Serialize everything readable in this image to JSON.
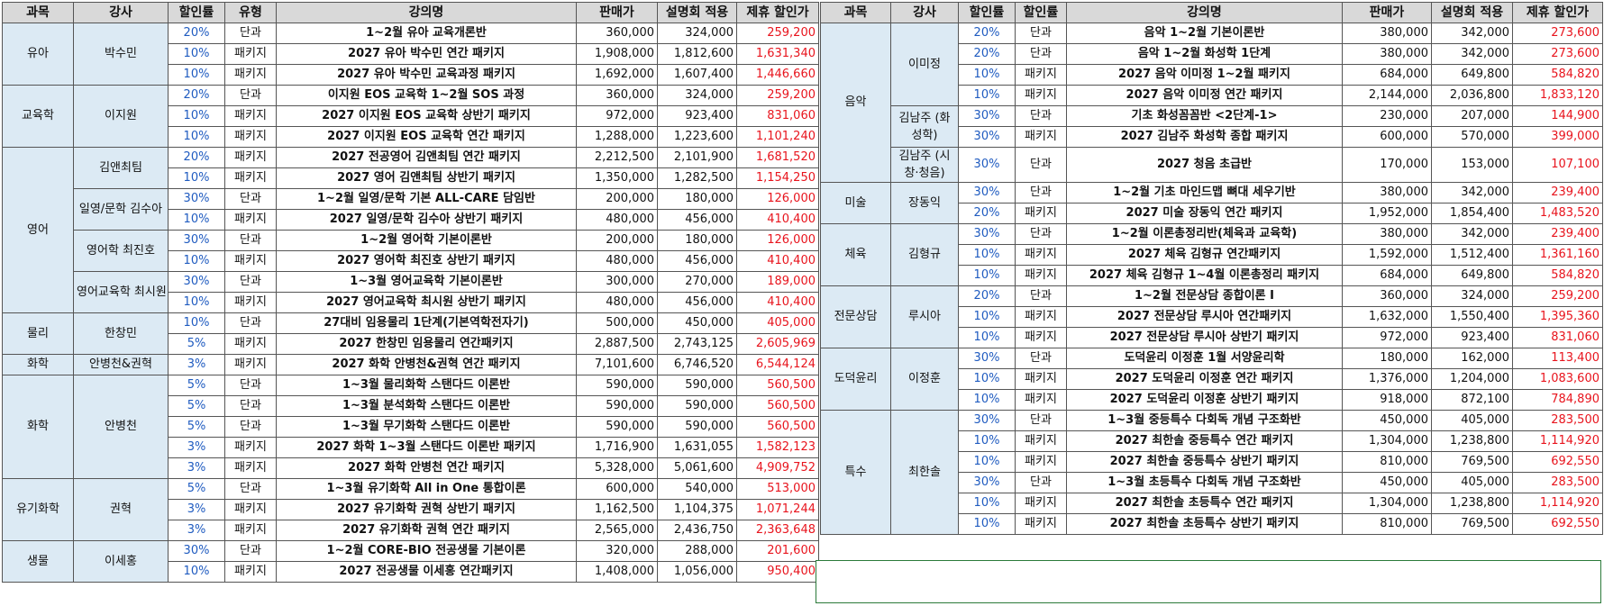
{
  "headers": {
    "subject": "과목",
    "teacher": "강사",
    "discount_left": "할인률",
    "type": "유형",
    "course": "강의명",
    "price": "판매가",
    "session_price": "설명회 적용",
    "partner_price": "제휴 할인가",
    "discount_right": "할인률"
  },
  "left": {
    "subjects": [
      "유아",
      "교육학",
      "영어",
      "물리",
      "화학",
      "화학",
      "유기화학",
      "생물"
    ],
    "teachers": [
      "박수민",
      "이지원",
      "김앤최팀",
      "일영/문학 김수아",
      "영어학 최진호",
      "영어교육학 최시원",
      "한창민",
      "안병천&권혁",
      "안병천",
      "권혁",
      "이세홍"
    ],
    "rows": [
      {
        "disc": "20%",
        "type": "단과",
        "name": "1~2월 유아 교육개론반",
        "price": "360,000",
        "session": "324,000",
        "partner": "259,200"
      },
      {
        "disc": "10%",
        "type": "패키지",
        "name": "2027 유아 박수민 연간 패키지",
        "price": "1,908,000",
        "session": "1,812,600",
        "partner": "1,631,340"
      },
      {
        "disc": "10%",
        "type": "패키지",
        "name": "2027 유아 박수민 교육과정 패키지",
        "price": "1,692,000",
        "session": "1,607,400",
        "partner": "1,446,660"
      },
      {
        "disc": "20%",
        "type": "단과",
        "name": "이지원 EOS 교육학 1~2월 SOS 과정",
        "price": "360,000",
        "session": "324,000",
        "partner": "259,200"
      },
      {
        "disc": "10%",
        "type": "패키지",
        "name": "2027 이지원 EOS 교육학 상반기 패키지",
        "price": "972,000",
        "session": "923,400",
        "partner": "831,060"
      },
      {
        "disc": "10%",
        "type": "패키지",
        "name": "2027 이지원 EOS 교육학 연간 패키지",
        "price": "1,288,000",
        "session": "1,223,600",
        "partner": "1,101,240"
      },
      {
        "disc": "20%",
        "type": "패키지",
        "name": "2027 전공영어 김앤최팀 연간 패키지",
        "price": "2,212,500",
        "session": "2,101,900",
        "partner": "1,681,520"
      },
      {
        "disc": "10%",
        "type": "패키지",
        "name": "2027 영어 김앤최팀 상반기 패키지",
        "price": "1,350,000",
        "session": "1,282,500",
        "partner": "1,154,250"
      },
      {
        "disc": "30%",
        "type": "단과",
        "name": "1~2월 일영/문학 기본 ALL-CARE 담임반",
        "price": "200,000",
        "session": "180,000",
        "partner": "126,000"
      },
      {
        "disc": "10%",
        "type": "패키지",
        "name": "2027 일영/문학 김수아 상반기 패키지",
        "price": "480,000",
        "session": "456,000",
        "partner": "410,400"
      },
      {
        "disc": "30%",
        "type": "단과",
        "name": "1~2월 영어학 기본이론반",
        "price": "200,000",
        "session": "180,000",
        "partner": "126,000"
      },
      {
        "disc": "10%",
        "type": "패키지",
        "name": "2027 영어학 최진호 상반기 패키지",
        "price": "480,000",
        "session": "456,000",
        "partner": "410,400"
      },
      {
        "disc": "30%",
        "type": "단과",
        "name": "1~3월 영어교육학 기본이론반",
        "price": "300,000",
        "session": "270,000",
        "partner": "189,000"
      },
      {
        "disc": "10%",
        "type": "패키지",
        "name": "2027 영어교육학 최시원 상반기 패키지",
        "price": "480,000",
        "session": "456,000",
        "partner": "410,400"
      },
      {
        "disc": "10%",
        "type": "단과",
        "name": "27대비 임용물리 1단계(기본역학전자기)",
        "price": "500,000",
        "session": "450,000",
        "partner": "405,000"
      },
      {
        "disc": "5%",
        "type": "패키지",
        "name": "2027 한창민 임용물리 연간패키지",
        "price": "2,887,500",
        "session": "2,743,125",
        "partner": "2,605,969"
      },
      {
        "disc": "3%",
        "type": "패키지",
        "name": "2027 화학 안병천&권혁 연간 패키지",
        "price": "7,101,600",
        "session": "6,746,520",
        "partner": "6,544,124"
      },
      {
        "disc": "5%",
        "type": "단과",
        "name": "1~3월 물리화학 스탠다드 이론반",
        "price": "590,000",
        "session": "590,000",
        "partner": "560,500"
      },
      {
        "disc": "5%",
        "type": "단과",
        "name": "1~3월 분석화학 스탠다드 이론반",
        "price": "590,000",
        "session": "590,000",
        "partner": "560,500"
      },
      {
        "disc": "5%",
        "type": "단과",
        "name": "1~3월 무기화학 스탠다드 이론반",
        "price": "590,000",
        "session": "590,000",
        "partner": "560,500"
      },
      {
        "disc": "3%",
        "type": "패키지",
        "name": "2027 화학 1~3월 스탠다드 이론반 패키지",
        "price": "1,716,900",
        "session": "1,631,055",
        "partner": "1,582,123"
      },
      {
        "disc": "3%",
        "type": "패키지",
        "name": "2027 화학 안병천 연간 패키지",
        "price": "5,328,000",
        "session": "5,061,600",
        "partner": "4,909,752"
      },
      {
        "disc": "5%",
        "type": "단과",
        "name": "1~3월 유기화학 All in One 통합이론",
        "price": "600,000",
        "session": "540,000",
        "partner": "513,000"
      },
      {
        "disc": "3%",
        "type": "패키지",
        "name": "2027 유기화학 권혁 상반기 패키지",
        "price": "1,162,500",
        "session": "1,104,375",
        "partner": "1,071,244"
      },
      {
        "disc": "3%",
        "type": "패키지",
        "name": "2027 유기화학 권혁 연간 패키지",
        "price": "2,565,000",
        "session": "2,436,750",
        "partner": "2,363,648"
      },
      {
        "disc": "30%",
        "type": "단과",
        "name": "1~2월 CORE-BIO 전공생물 기본이론",
        "price": "320,000",
        "session": "288,000",
        "partner": "201,600"
      },
      {
        "disc": "10%",
        "type": "패키지",
        "name": "2027 전공생물 이세홍 연간패키지",
        "price": "1,408,000",
        "session": "1,056,000",
        "partner": "950,400"
      }
    ]
  },
  "right": {
    "subjects": [
      "음악",
      "미술",
      "체육",
      "전문상담",
      "도덕윤리",
      "특수"
    ],
    "teachers": [
      "이미정",
      "김남주\n(화성학)",
      "김남주\n(시창·청음)",
      "장동익",
      "김형규",
      "루시아",
      "이정훈",
      "최한솔"
    ],
    "rows": [
      {
        "disc": "20%",
        "type": "단과",
        "name": "음악 1~2월 기본이론반",
        "price": "380,000",
        "session": "342,000",
        "partner": "273,600"
      },
      {
        "disc": "20%",
        "type": "단과",
        "name": "음악 1~2월 화성학 1단계",
        "price": "380,000",
        "session": "342,000",
        "partner": "273,600"
      },
      {
        "disc": "10%",
        "type": "패키지",
        "name": "2027 음악 이미정 1~2월 패키지",
        "price": "684,000",
        "session": "649,800",
        "partner": "584,820"
      },
      {
        "disc": "10%",
        "type": "패키지",
        "name": "2027 음악 이미정 연간 패키지",
        "price": "2,144,000",
        "session": "2,036,800",
        "partner": "1,833,120"
      },
      {
        "disc": "30%",
        "type": "단과",
        "name": "기초 화성꼼꼼반 <2단계-1>",
        "price": "230,000",
        "session": "207,000",
        "partner": "144,900"
      },
      {
        "disc": "30%",
        "type": "패키지",
        "name": "2027 김남주 화성학 종합 패키지",
        "price": "600,000",
        "session": "570,000",
        "partner": "399,000"
      },
      {
        "disc": "30%",
        "type": "단과",
        "name": "2027 청음 초급반",
        "price": "170,000",
        "session": "153,000",
        "partner": "107,100"
      },
      {
        "disc": "30%",
        "type": "단과",
        "name": "1~2월 기초 마인드맵 뼈대 세우기반",
        "price": "380,000",
        "session": "342,000",
        "partner": "239,400"
      },
      {
        "disc": "20%",
        "type": "패키지",
        "name": "2027 미술 장동익 연간 패키지",
        "price": "1,952,000",
        "session": "1,854,400",
        "partner": "1,483,520"
      },
      {
        "disc": "30%",
        "type": "단과",
        "name": "1~2월 이론총정리반(체육과 교육학)",
        "price": "380,000",
        "session": "342,000",
        "partner": "239,400"
      },
      {
        "disc": "10%",
        "type": "패키지",
        "name": "2027 체육 김형규 연간패키지",
        "price": "1,592,000",
        "session": "1,512,400",
        "partner": "1,361,160"
      },
      {
        "disc": "10%",
        "type": "패키지",
        "name": "2027 체육 김형규 1~4월 이론총정리 패키지",
        "price": "684,000",
        "session": "649,800",
        "partner": "584,820"
      },
      {
        "disc": "20%",
        "type": "단과",
        "name": "1~2월 전문상담 종합이론 I",
        "price": "360,000",
        "session": "324,000",
        "partner": "259,200"
      },
      {
        "disc": "10%",
        "type": "패키지",
        "name": "2027 전문상담 루시아 연간패키지",
        "price": "1,632,000",
        "session": "1,550,400",
        "partner": "1,395,360"
      },
      {
        "disc": "10%",
        "type": "패키지",
        "name": "2027 전문상담 루시아 상반기 패키지",
        "price": "972,000",
        "session": "923,400",
        "partner": "831,060"
      },
      {
        "disc": "30%",
        "type": "단과",
        "name": "도덕윤리 이정훈 1월 서양윤리학",
        "price": "180,000",
        "session": "162,000",
        "partner": "113,400"
      },
      {
        "disc": "10%",
        "type": "패키지",
        "name": "2027 도덕윤리 이정훈 연간 패키지",
        "price": "1,376,000",
        "session": "1,204,000",
        "partner": "1,083,600"
      },
      {
        "disc": "10%",
        "type": "패키지",
        "name": "2027 도덕윤리 이정훈 상반기 패키지",
        "price": "918,000",
        "session": "872,100",
        "partner": "784,890"
      },
      {
        "disc": "30%",
        "type": "단과",
        "name": "1~3월 중등특수 다회독 개념 구조화반",
        "price": "450,000",
        "session": "405,000",
        "partner": "283,500"
      },
      {
        "disc": "10%",
        "type": "패키지",
        "name": "2027 최한솔 중등특수 연간 패키지",
        "price": "1,304,000",
        "session": "1,238,800",
        "partner": "1,114,920"
      },
      {
        "disc": "10%",
        "type": "패키지",
        "name": "2027 최한솔 중등특수 상반기 패키지",
        "price": "810,000",
        "session": "769,500",
        "partner": "692,550"
      },
      {
        "disc": "30%",
        "type": "단과",
        "name": "1~3월 초등특수 다회독 개념 구조화반",
        "price": "450,000",
        "session": "405,000",
        "partner": "283,500"
      },
      {
        "disc": "10%",
        "type": "패키지",
        "name": "2027 최한솔 초등특수 연간 패키지",
        "price": "1,304,000",
        "session": "1,238,800",
        "partner": "1,114,920"
      },
      {
        "disc": "10%",
        "type": "패키지",
        "name": "2027 최한솔 초등특수 상반기 패키지",
        "price": "810,000",
        "session": "769,500",
        "partner": "692,550"
      }
    ]
  }
}
